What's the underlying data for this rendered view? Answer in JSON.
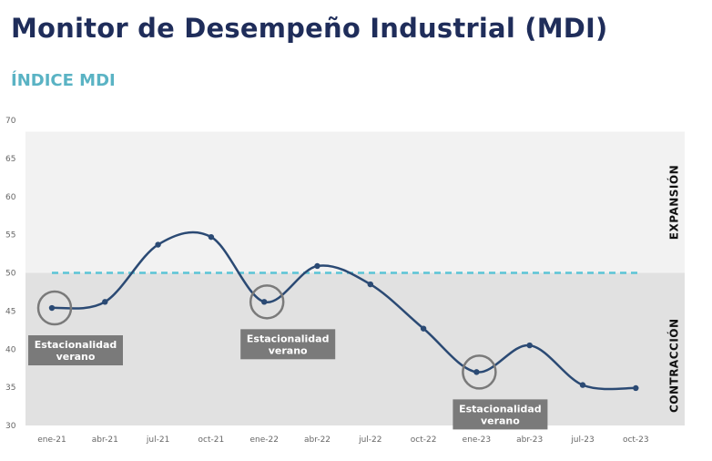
{
  "header": {
    "title": "Monitor de Desempeño Industrial (MDI)",
    "subtitle": "ÍNDICE MDI"
  },
  "colors": {
    "line": "#2b4a74",
    "threshold": "#5bc4d6",
    "expansion_zone": "#f2f2f2",
    "contraction_zone": "#e1e1e1",
    "annotation_box": "#7a7a7a",
    "annotation_circle": "#7a7a7a"
  },
  "chart_data": {
    "type": "line",
    "title": "ÍNDICE MDI",
    "xlabel": "",
    "ylabel": "",
    "categories": [
      "ene-21",
      "abr-21",
      "jul-21",
      "oct-21",
      "ene-22",
      "abr-22",
      "jul-22",
      "oct-22",
      "ene-23",
      "abr-23",
      "jul-23",
      "oct-23"
    ],
    "series": [
      {
        "values": [
          45.4,
          46.2,
          53.7,
          54.7,
          46.2,
          50.9,
          48.5,
          42.7,
          37.0,
          40.5,
          35.3,
          34.9
        ]
      }
    ],
    "ylim": [
      30,
      70
    ],
    "yticks": [
      30,
      35,
      40,
      45,
      50,
      55,
      60,
      65,
      70
    ],
    "threshold": 50,
    "grid": false,
    "zones": {
      "upper_label": "EXPANSIÓN",
      "lower_label": "CONTRACCIÓN"
    },
    "annotations": [
      {
        "category": "ene-21",
        "line1": "Estacionalidad",
        "line2": "verano"
      },
      {
        "category": "ene-22",
        "line1": "Estacionalidad",
        "line2": "verano"
      },
      {
        "category": "ene-23",
        "line1": "Estacionalidad",
        "line2": "verano"
      }
    ]
  }
}
